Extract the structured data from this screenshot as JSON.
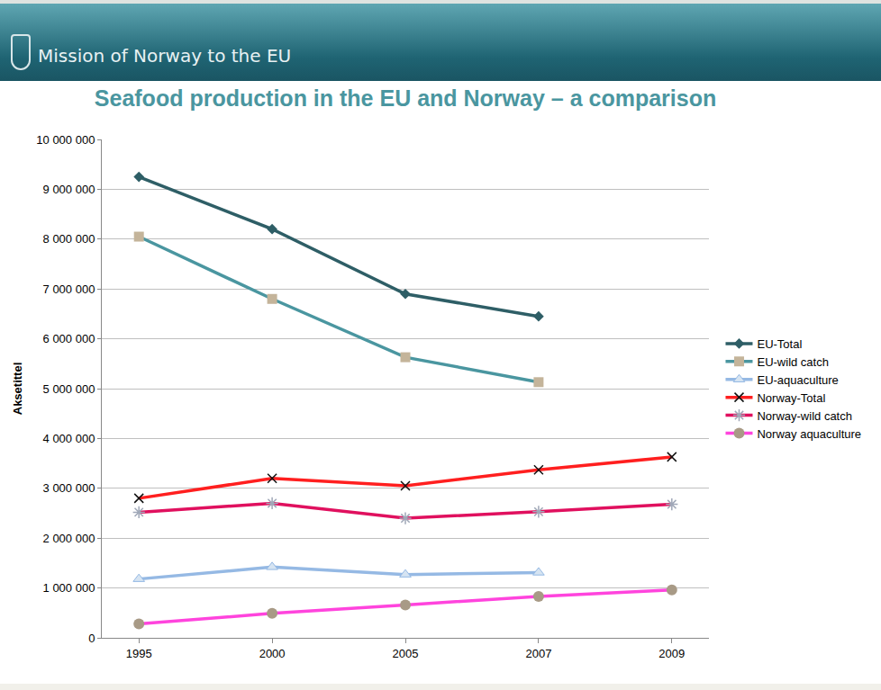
{
  "header": "Mission of Norway to the EU",
  "chart_data": {
    "type": "line",
    "title": "Seafood production in the EU and Norway – a comparison",
    "y_label": "Aksetittel",
    "categories": [
      "1995",
      "2000",
      "2005",
      "2007",
      "2009"
    ],
    "series": [
      {
        "name": "EU-Total",
        "color": "#2e5e66",
        "marker": "diamond",
        "values": [
          9250000,
          8200000,
          6900000,
          6450000,
          null
        ]
      },
      {
        "name": "EU-wild catch",
        "color": "#4a96a0",
        "marker": "square",
        "values": [
          8050000,
          6800000,
          5630000,
          5130000,
          null
        ]
      },
      {
        "name": "EU-aquaculture",
        "color": "#95b9e4",
        "marker": "triangle",
        "values": [
          1180000,
          1420000,
          1270000,
          1310000,
          null
        ]
      },
      {
        "name": "Norway-Total",
        "color": "#ff1f1f",
        "marker": "x",
        "values": [
          2800000,
          3200000,
          3050000,
          3370000,
          3630000
        ]
      },
      {
        "name": "Norway-wild catch",
        "color": "#e0105e",
        "marker": "star",
        "values": [
          2520000,
          2700000,
          2400000,
          2530000,
          2680000
        ]
      },
      {
        "name": "Norway aquaculture",
        "color": "#ff44dd",
        "marker": "circle",
        "values": [
          280000,
          490000,
          660000,
          830000,
          960000
        ]
      }
    ],
    "ylim": [
      0,
      10000000
    ],
    "yticks": [
      0,
      {
        "value": 1000000,
        "label": "1 000 000"
      },
      {
        "value": 2000000,
        "label": "2 000 000"
      },
      {
        "value": 3000000,
        "label": "3 000 000"
      },
      {
        "value": 4000000,
        "label": "4 000 000"
      },
      {
        "value": 5000000,
        "label": "5 000 000"
      },
      {
        "value": 6000000,
        "label": "6 000 000"
      },
      {
        "value": 7000000,
        "label": "7 000 000"
      },
      {
        "value": 8000000,
        "label": "8 000 000"
      },
      {
        "value": 9000000,
        "label": "9 000 000"
      },
      {
        "value": 10000000,
        "label": "10 000 000"
      }
    ],
    "grid": true,
    "legend": "right"
  }
}
